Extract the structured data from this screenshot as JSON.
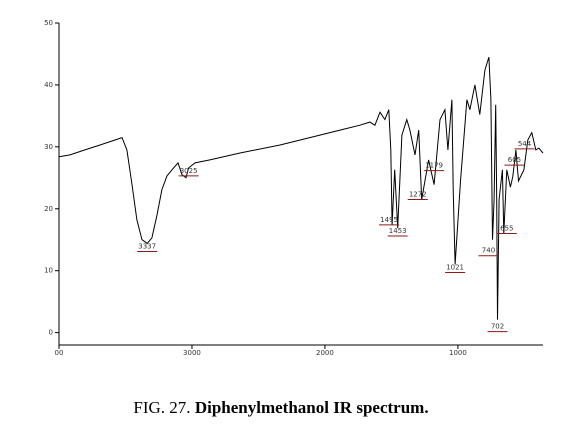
{
  "chart_data": {
    "type": "line",
    "caption_prefix": "FIG. 27.",
    "caption": "Diphenylmethanol IR spectrum.",
    "x": [
      4000,
      3917,
      3805,
      3692,
      3579,
      3526,
      3489,
      3451,
      3414,
      3376,
      3337,
      3301,
      3263,
      3226,
      3188,
      3150,
      3105,
      3075,
      3045,
      3025,
      2977,
      2865,
      2639,
      2338,
      2038,
      1887,
      1737,
      1662,
      1624,
      1586,
      1549,
      1520,
      1505,
      1495,
      1475,
      1453,
      1421,
      1384,
      1361,
      1323,
      1295,
      1272,
      1220,
      1179,
      1135,
      1098,
      1075,
      1045,
      1035,
      1021,
      980,
      932,
      910,
      872,
      835,
      797,
      767,
      752,
      740,
      728,
      716,
      708,
      702,
      690,
      665,
      655,
      632,
      605,
      587,
      564,
      544,
      504,
      474,
      444,
      414,
      391,
      361
    ],
    "values": [
      28.4,
      28.7,
      29.5,
      30.3,
      31.1,
      31.5,
      29.5,
      23.9,
      18.2,
      15.0,
      14.4,
      15.3,
      19.0,
      23.1,
      25.3,
      26.3,
      27.4,
      25.5,
      25.0,
      26.6,
      27.4,
      27.9,
      29.0,
      30.3,
      31.9,
      32.7,
      33.5,
      34.0,
      33.5,
      35.6,
      34.4,
      36.0,
      29.5,
      17.4,
      26.3,
      16.9,
      31.9,
      34.4,
      32.7,
      28.7,
      32.7,
      21.5,
      27.9,
      23.9,
      34.4,
      36.0,
      29.5,
      37.6,
      23.1,
      11.0,
      24.7,
      37.6,
      36.0,
      40.0,
      35.2,
      42.4,
      44.5,
      37.6,
      15.0,
      21.5,
      36.8,
      21.5,
      2.1,
      21.5,
      26.3,
      16.0,
      26.3,
      23.5,
      25.2,
      29.5,
      24.5,
      26.3,
      31.1,
      32.3,
      29.5,
      29.8,
      29.0
    ],
    "color": "#000000",
    "peaks": [
      3337,
      3025,
      1495,
      1453,
      1272,
      1179,
      1021,
      740,
      702,
      655,
      605,
      544
    ],
    "peak_color": "#8b1a1a",
    "xlim": [
      4000,
      360
    ],
    "ylim": [
      -2,
      50
    ],
    "xticks": [
      {
        "value": 4000,
        "label": "00"
      },
      3000,
      2000,
      1000
    ],
    "yticks": [
      0,
      10,
      20,
      30,
      40,
      50
    ]
  }
}
